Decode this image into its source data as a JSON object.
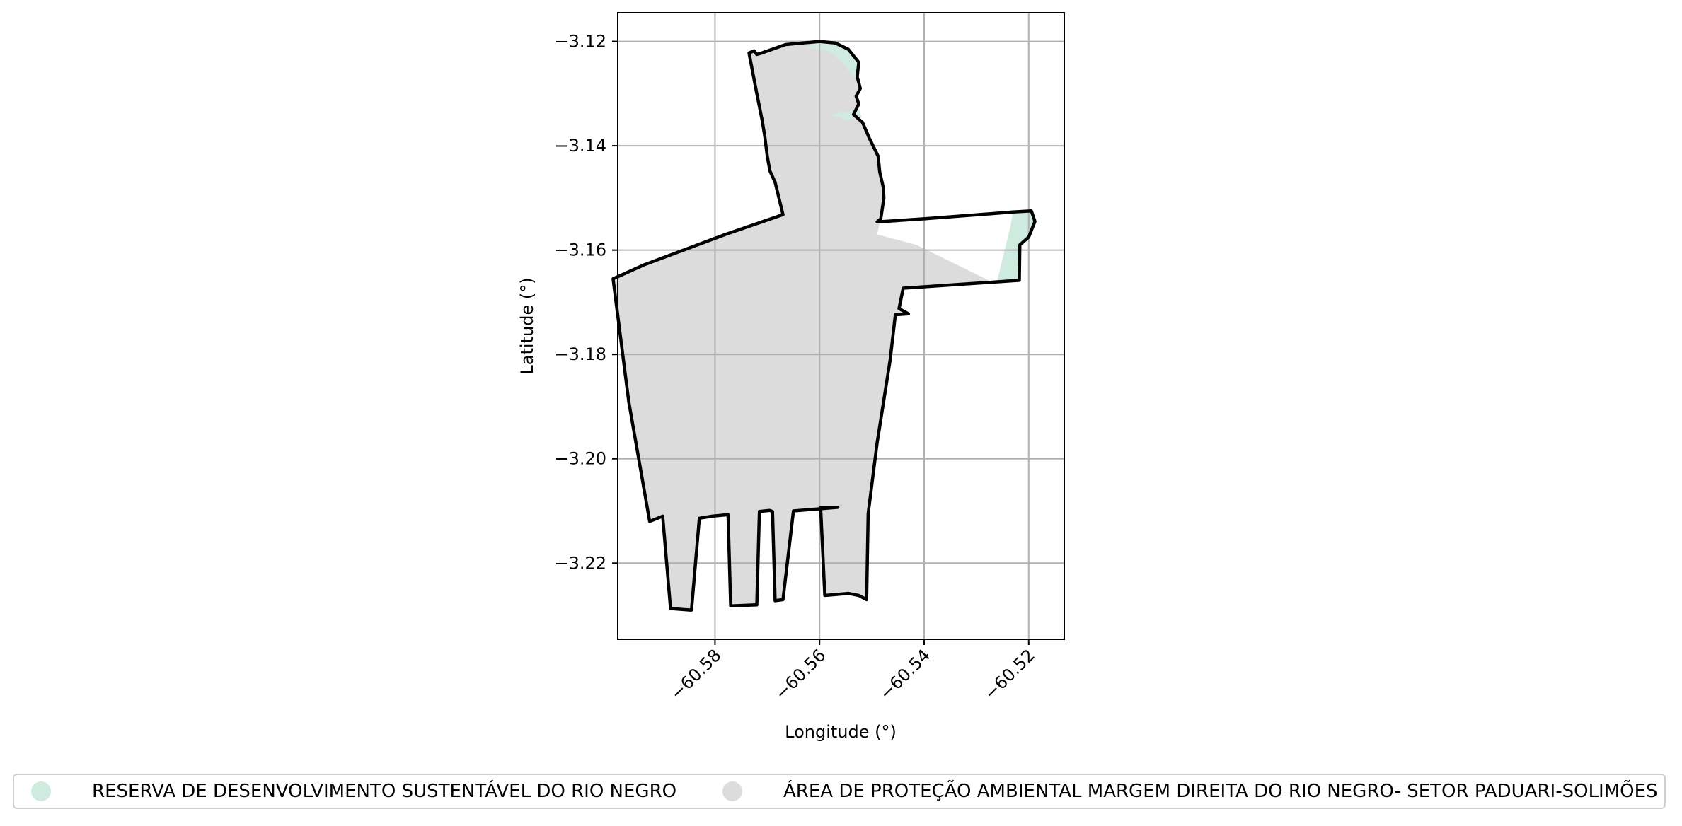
{
  "chart_data": {
    "type": "map",
    "xlabel": "Longitude (°)",
    "ylabel": "Latitude (°)",
    "xlim": [
      -60.5986,
      -60.5132
    ],
    "ylim": [
      -3.2346,
      -3.1145
    ],
    "xticks": [
      -60.58,
      -60.56,
      -60.54,
      -60.52
    ],
    "xtick_labels": [
      "−60.58",
      "−60.56",
      "−60.54",
      "−60.52"
    ],
    "yticks": [
      -3.12,
      -3.14,
      -3.16,
      -3.18,
      -3.2,
      -3.22
    ],
    "ytick_labels": [
      "−3.12",
      "−3.14",
      "−3.16",
      "−3.18",
      "−3.20",
      "−3.22"
    ],
    "grid": true,
    "legend_position": "bottom",
    "layers": [
      {
        "name": "RESERVA DE DESENVOLVIMENTO SUSTENTÁVEL DO RIO NEGRO",
        "color": "#cfeadf",
        "polygons": [
          [
            [
              -60.5628,
              -3.1212
            ],
            [
              -60.559,
              -3.1198
            ],
            [
              -60.5545,
              -3.1215
            ],
            [
              -60.5525,
              -3.124
            ],
            [
              -60.5525,
              -3.1265
            ],
            [
              -60.5535,
              -3.1268
            ],
            [
              -60.5555,
              -3.124
            ],
            [
              -60.5585,
              -3.1218
            ]
          ],
          [
            [
              -60.5524,
              -3.133
            ],
            [
              -60.558,
              -3.134
            ],
            [
              -60.555,
              -3.135
            ],
            [
              -60.552,
              -3.1345
            ]
          ],
          [
            [
              -60.5195,
              -3.1525
            ],
            [
              -60.5188,
              -3.1545
            ],
            [
              -60.52,
              -3.1575
            ],
            [
              -60.5217,
              -3.159
            ],
            [
              -60.5218,
              -3.1658
            ],
            [
              -60.526,
              -3.1658
            ],
            [
              -60.5235,
              -3.1555
            ],
            [
              -60.523,
              -3.1527
            ]
          ]
        ]
      },
      {
        "name": "ÁREA DE PROTEÇÃO AMBIENTAL MARGEM DIREITA DO RIO NEGRO- SETOR PADUARI-SOLIMÕES",
        "color": "#dcdcdc",
        "polygons": [
          [
            [
              -60.5735,
              -3.1222
            ],
            [
              -60.5725,
              -3.1218
            ],
            [
              -60.572,
              -3.1225
            ],
            [
              -60.571,
              -3.1222
            ],
            [
              -60.5665,
              -3.1206
            ],
            [
              -60.56,
              -3.12
            ],
            [
              -60.557,
              -3.1203
            ],
            [
              -60.5545,
              -3.1215
            ],
            [
              -60.5525,
              -3.124
            ],
            [
              -60.5528,
              -3.1268
            ],
            [
              -60.5522,
              -3.129
            ],
            [
              -60.553,
              -3.1305
            ],
            [
              -60.5525,
              -3.132
            ],
            [
              -60.5535,
              -3.134
            ],
            [
              -60.5518,
              -3.1355
            ],
            [
              -60.5505,
              -3.1385
            ],
            [
              -60.5488,
              -3.142
            ],
            [
              -60.5485,
              -3.145
            ],
            [
              -60.5478,
              -3.148
            ],
            [
              -60.5477,
              -3.15
            ],
            [
              -60.5483,
              -3.154
            ],
            [
              -60.549,
              -3.157
            ],
            [
              -60.5415,
              -3.159
            ],
            [
              -60.5262,
              -3.1665
            ],
            [
              -60.544,
              -3.1673
            ],
            [
              -60.5448,
              -3.1712
            ],
            [
              -60.543,
              -3.1722
            ],
            [
              -60.5455,
              -3.1724
            ],
            [
              -60.5465,
              -3.181
            ],
            [
              -60.549,
              -3.197
            ],
            [
              -60.5507,
              -3.2105
            ],
            [
              -60.551,
              -3.227
            ],
            [
              -60.5525,
              -3.2262
            ],
            [
              -60.5545,
              -3.2258
            ],
            [
              -60.559,
              -3.2262
            ],
            [
              -60.5598,
              -3.2093
            ],
            [
              -60.5565,
              -3.2093
            ],
            [
              -60.565,
              -3.21
            ],
            [
              -60.567,
              -3.227
            ],
            [
              -60.5685,
              -3.2272
            ],
            [
              -60.569,
              -3.2101
            ],
            [
              -60.5695,
              -3.2099
            ],
            [
              -60.5715,
              -3.2101
            ],
            [
              -60.572,
              -3.228
            ],
            [
              -60.577,
              -3.2282
            ],
            [
              -60.5775,
              -3.2107
            ],
            [
              -60.5805,
              -3.211
            ],
            [
              -60.583,
              -3.2114
            ],
            [
              -60.5845,
              -3.229
            ],
            [
              -60.5885,
              -3.2287
            ],
            [
              -60.59,
              -3.211
            ],
            [
              -60.5925,
              -3.212
            ],
            [
              -60.5965,
              -3.189
            ],
            [
              -60.5995,
              -3.1655
            ],
            [
              -60.5935,
              -3.1628
            ],
            [
              -60.578,
              -3.157
            ],
            [
              -60.567,
              -3.1532
            ],
            [
              -60.5685,
              -3.147
            ],
            [
              -60.5695,
              -3.1448
            ],
            [
              -60.57,
              -3.142
            ],
            [
              -60.5705,
              -3.138
            ],
            [
              -60.571,
              -3.135
            ],
            [
              -60.572,
              -3.13
            ],
            [
              -60.5735,
              -3.1222
            ]
          ]
        ]
      }
    ],
    "outline": [
      [
        -60.5735,
        -3.1222
      ],
      [
        -60.5725,
        -3.1218
      ],
      [
        -60.572,
        -3.1225
      ],
      [
        -60.571,
        -3.1222
      ],
      [
        -60.5665,
        -3.1206
      ],
      [
        -60.56,
        -3.12
      ],
      [
        -60.557,
        -3.1203
      ],
      [
        -60.5545,
        -3.1215
      ],
      [
        -60.5525,
        -3.124
      ],
      [
        -60.5528,
        -3.1268
      ],
      [
        -60.5522,
        -3.129
      ],
      [
        -60.553,
        -3.1305
      ],
      [
        -60.5525,
        -3.132
      ],
      [
        -60.5535,
        -3.134
      ],
      [
        -60.5518,
        -3.1355
      ],
      [
        -60.5505,
        -3.1385
      ],
      [
        -60.5488,
        -3.142
      ],
      [
        -60.5485,
        -3.145
      ],
      [
        -60.5478,
        -3.148
      ],
      [
        -60.5477,
        -3.15
      ],
      [
        -60.5483,
        -3.154
      ],
      [
        -60.549,
        -3.1546
      ],
      [
        -60.54,
        -3.154
      ],
      [
        -60.523,
        -3.1527
      ],
      [
        -60.5195,
        -3.1525
      ],
      [
        -60.5188,
        -3.1545
      ],
      [
        -60.52,
        -3.1575
      ],
      [
        -60.5217,
        -3.159
      ],
      [
        -60.5218,
        -3.1658
      ],
      [
        -60.544,
        -3.1673
      ],
      [
        -60.5448,
        -3.1712
      ],
      [
        -60.543,
        -3.1722
      ],
      [
        -60.5455,
        -3.1724
      ],
      [
        -60.5465,
        -3.181
      ],
      [
        -60.549,
        -3.197
      ],
      [
        -60.5507,
        -3.2105
      ],
      [
        -60.551,
        -3.227
      ],
      [
        -60.5525,
        -3.2262
      ],
      [
        -60.5545,
        -3.2258
      ],
      [
        -60.559,
        -3.2262
      ],
      [
        -60.5598,
        -3.2093
      ],
      [
        -60.5565,
        -3.2093
      ],
      [
        -60.565,
        -3.21
      ],
      [
        -60.567,
        -3.227
      ],
      [
        -60.5685,
        -3.2272
      ],
      [
        -60.569,
        -3.2101
      ],
      [
        -60.5695,
        -3.2099
      ],
      [
        -60.5715,
        -3.2101
      ],
      [
        -60.572,
        -3.228
      ],
      [
        -60.577,
        -3.2282
      ],
      [
        -60.5775,
        -3.2107
      ],
      [
        -60.5805,
        -3.211
      ],
      [
        -60.583,
        -3.2114
      ],
      [
        -60.5845,
        -3.229
      ],
      [
        -60.5885,
        -3.2287
      ],
      [
        -60.59,
        -3.211
      ],
      [
        -60.5925,
        -3.212
      ],
      [
        -60.5965,
        -3.189
      ],
      [
        -60.5995,
        -3.1655
      ],
      [
        -60.5935,
        -3.1628
      ],
      [
        -60.578,
        -3.157
      ],
      [
        -60.567,
        -3.1532
      ],
      [
        -60.5685,
        -3.147
      ],
      [
        -60.5695,
        -3.1448
      ],
      [
        -60.57,
        -3.142
      ],
      [
        -60.5705,
        -3.138
      ],
      [
        -60.571,
        -3.135
      ],
      [
        -60.572,
        -3.13
      ],
      [
        -60.5735,
        -3.1222
      ]
    ],
    "outline_color": "#000000"
  },
  "legend": {
    "items": [
      {
        "label": "RESERVA DE DESENVOLVIMENTO SUSTENTÁVEL DO RIO NEGRO",
        "color": "#cfeadf"
      },
      {
        "label": "ÁREA DE PROTEÇÃO AMBIENTAL MARGEM DIREITA DO RIO NEGRO- SETOR PADUARI-SOLIMÕES",
        "color": "#dcdcdc"
      }
    ]
  }
}
